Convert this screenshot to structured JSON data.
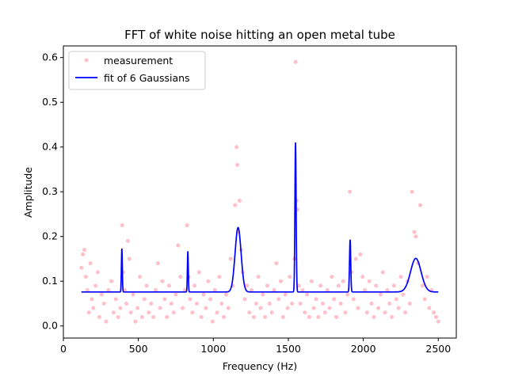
{
  "chart_data": {
    "type": "scatter",
    "title": "FFT of white noise hitting an open metal tube",
    "xlabel": "Frequency (Hz)",
    "ylabel": "Amplitude",
    "xlim": [
      0,
      2620
    ],
    "ylim": [
      -0.027,
      0.626
    ],
    "xticks": [
      0,
      500,
      1000,
      1500,
      2000,
      2500
    ],
    "yticks": [
      0.0,
      0.1,
      0.2,
      0.3,
      0.4,
      0.5,
      0.6
    ],
    "grid": false,
    "legend_position": "top-left",
    "series": [
      {
        "name": "measurement",
        "kind": "scatter",
        "color": "#ffc0cb",
        "points": [
          [
            120,
            0.13
          ],
          [
            130,
            0.16
          ],
          [
            140,
            0.17
          ],
          [
            150,
            0.11
          ],
          [
            160,
            0.08
          ],
          [
            170,
            0.03
          ],
          [
            180,
            0.14
          ],
          [
            190,
            0.06
          ],
          [
            200,
            0.04
          ],
          [
            215,
            0.09
          ],
          [
            230,
            0.12
          ],
          [
            240,
            0.02
          ],
          [
            255,
            0.07
          ],
          [
            270,
            0.05
          ],
          [
            285,
            0.01
          ],
          [
            300,
            0.08
          ],
          [
            320,
            0.1
          ],
          [
            335,
            0.03
          ],
          [
            350,
            0.06
          ],
          [
            365,
            0.02
          ],
          [
            380,
            0.04
          ],
          [
            392,
            0.225
          ],
          [
            398,
            0.12
          ],
          [
            410,
            0.08
          ],
          [
            420,
            0.05
          ],
          [
            430,
            0.19
          ],
          [
            440,
            0.15
          ],
          [
            450,
            0.03
          ],
          [
            465,
            0.07
          ],
          [
            480,
            0.01
          ],
          [
            495,
            0.04
          ],
          [
            510,
            0.11
          ],
          [
            525,
            0.02
          ],
          [
            540,
            0.06
          ],
          [
            555,
            0.09
          ],
          [
            570,
            0.03
          ],
          [
            585,
            0.05
          ],
          [
            600,
            0.02
          ],
          [
            615,
            0.08
          ],
          [
            630,
            0.14
          ],
          [
            645,
            0.04
          ],
          [
            660,
            0.1
          ],
          [
            675,
            0.06
          ],
          [
            690,
            0.02
          ],
          [
            705,
            0.09
          ],
          [
            720,
            0.05
          ],
          [
            735,
            0.03
          ],
          [
            750,
            0.07
          ],
          [
            765,
            0.18
          ],
          [
            780,
            0.11
          ],
          [
            795,
            0.04
          ],
          [
            810,
            0.08
          ],
          [
            825,
            0.225
          ],
          [
            835,
            0.11
          ],
          [
            845,
            0.06
          ],
          [
            860,
            0.03
          ],
          [
            875,
            0.09
          ],
          [
            890,
            0.05
          ],
          [
            905,
            0.12
          ],
          [
            920,
            0.02
          ],
          [
            935,
            0.07
          ],
          [
            950,
            0.04
          ],
          [
            965,
            0.1
          ],
          [
            980,
            0.06
          ],
          [
            995,
            0.01
          ],
          [
            1010,
            0.08
          ],
          [
            1025,
            0.03
          ],
          [
            1040,
            0.11
          ],
          [
            1055,
            0.05
          ],
          [
            1070,
            0.02
          ],
          [
            1085,
            0.07
          ],
          [
            1100,
            0.04
          ],
          [
            1115,
            0.15
          ],
          [
            1130,
            0.09
          ],
          [
            1145,
            0.27
          ],
          [
            1155,
            0.4
          ],
          [
            1160,
            0.36
          ],
          [
            1165,
            0.21
          ],
          [
            1175,
            0.28
          ],
          [
            1185,
            0.17
          ],
          [
            1195,
            0.12
          ],
          [
            1210,
            0.06
          ],
          [
            1225,
            0.09
          ],
          [
            1240,
            0.03
          ],
          [
            1255,
            0.08
          ],
          [
            1270,
            0.02
          ],
          [
            1285,
            0.05
          ],
          [
            1300,
            0.11
          ],
          [
            1315,
            0.04
          ],
          [
            1330,
            0.07
          ],
          [
            1345,
            0.02
          ],
          [
            1360,
            0.09
          ],
          [
            1375,
            0.05
          ],
          [
            1390,
            0.03
          ],
          [
            1405,
            0.08
          ],
          [
            1420,
            0.14
          ],
          [
            1435,
            0.06
          ],
          [
            1450,
            0.1
          ],
          [
            1465,
            0.02
          ],
          [
            1480,
            0.07
          ],
          [
            1495,
            0.04
          ],
          [
            1510,
            0.11
          ],
          [
            1525,
            0.05
          ],
          [
            1540,
            0.15
          ],
          [
            1548,
            0.59
          ],
          [
            1555,
            0.28
          ],
          [
            1560,
            0.26
          ],
          [
            1570,
            0.09
          ],
          [
            1580,
            0.05
          ],
          [
            1595,
            0.08
          ],
          [
            1610,
            0.03
          ],
          [
            1625,
            0.07
          ],
          [
            1640,
            0.02
          ],
          [
            1655,
            0.1
          ],
          [
            1670,
            0.04
          ],
          [
            1685,
            0.06
          ],
          [
            1700,
            0.02
          ],
          [
            1715,
            0.09
          ],
          [
            1730,
            0.05
          ],
          [
            1745,
            0.03
          ],
          [
            1760,
            0.08
          ],
          [
            1775,
            0.04
          ],
          [
            1790,
            0.11
          ],
          [
            1805,
            0.06
          ],
          [
            1820,
            0.02
          ],
          [
            1835,
            0.09
          ],
          [
            1850,
            0.05
          ],
          [
            1865,
            0.1
          ],
          [
            1880,
            0.03
          ],
          [
            1895,
            0.07
          ],
          [
            1910,
            0.3
          ],
          [
            1920,
            0.12
          ],
          [
            1935,
            0.06
          ],
          [
            1950,
            0.15
          ],
          [
            1965,
            0.04
          ],
          [
            1980,
            0.16
          ],
          [
            1995,
            0.11
          ],
          [
            2010,
            0.08
          ],
          [
            2025,
            0.03
          ],
          [
            2040,
            0.1
          ],
          [
            2055,
            0.05
          ],
          [
            2070,
            0.02
          ],
          [
            2085,
            0.09
          ],
          [
            2100,
            0.04
          ],
          [
            2115,
            0.07
          ],
          [
            2130,
            0.12
          ],
          [
            2145,
            0.03
          ],
          [
            2160,
            0.08
          ],
          [
            2175,
            0.05
          ],
          [
            2190,
            0.02
          ],
          [
            2205,
            0.09
          ],
          [
            2220,
            0.06
          ],
          [
            2235,
            0.04
          ],
          [
            2250,
            0.11
          ],
          [
            2265,
            0.07
          ],
          [
            2280,
            0.03
          ],
          [
            2295,
            0.1
          ],
          [
            2310,
            0.05
          ],
          [
            2325,
            0.3
          ],
          [
            2340,
            0.21
          ],
          [
            2350,
            0.2
          ],
          [
            2365,
            0.14
          ],
          [
            2380,
            0.27
          ],
          [
            2395,
            0.09
          ],
          [
            2410,
            0.06
          ],
          [
            2425,
            0.11
          ],
          [
            2440,
            0.04
          ],
          [
            2455,
            0.08
          ],
          [
            2470,
            0.03
          ],
          [
            2485,
            0.02
          ],
          [
            2500,
            0.01
          ]
        ]
      },
      {
        "name": "fit of 6 Gaussians",
        "kind": "line",
        "color": "#0000ff",
        "baseline": 0.076,
        "x_range": [
          120,
          2500
        ],
        "peaks": [
          {
            "center": 390,
            "amplitude": 0.097,
            "sigma": 3
          },
          {
            "center": 830,
            "amplitude": 0.091,
            "sigma": 3
          },
          {
            "center": 1165,
            "amplitude": 0.144,
            "sigma": 20
          },
          {
            "center": 1548,
            "amplitude": 0.334,
            "sigma": 4
          },
          {
            "center": 1912,
            "amplitude": 0.117,
            "sigma": 4
          },
          {
            "center": 2350,
            "amplitude": 0.075,
            "sigma": 35
          }
        ]
      }
    ]
  }
}
